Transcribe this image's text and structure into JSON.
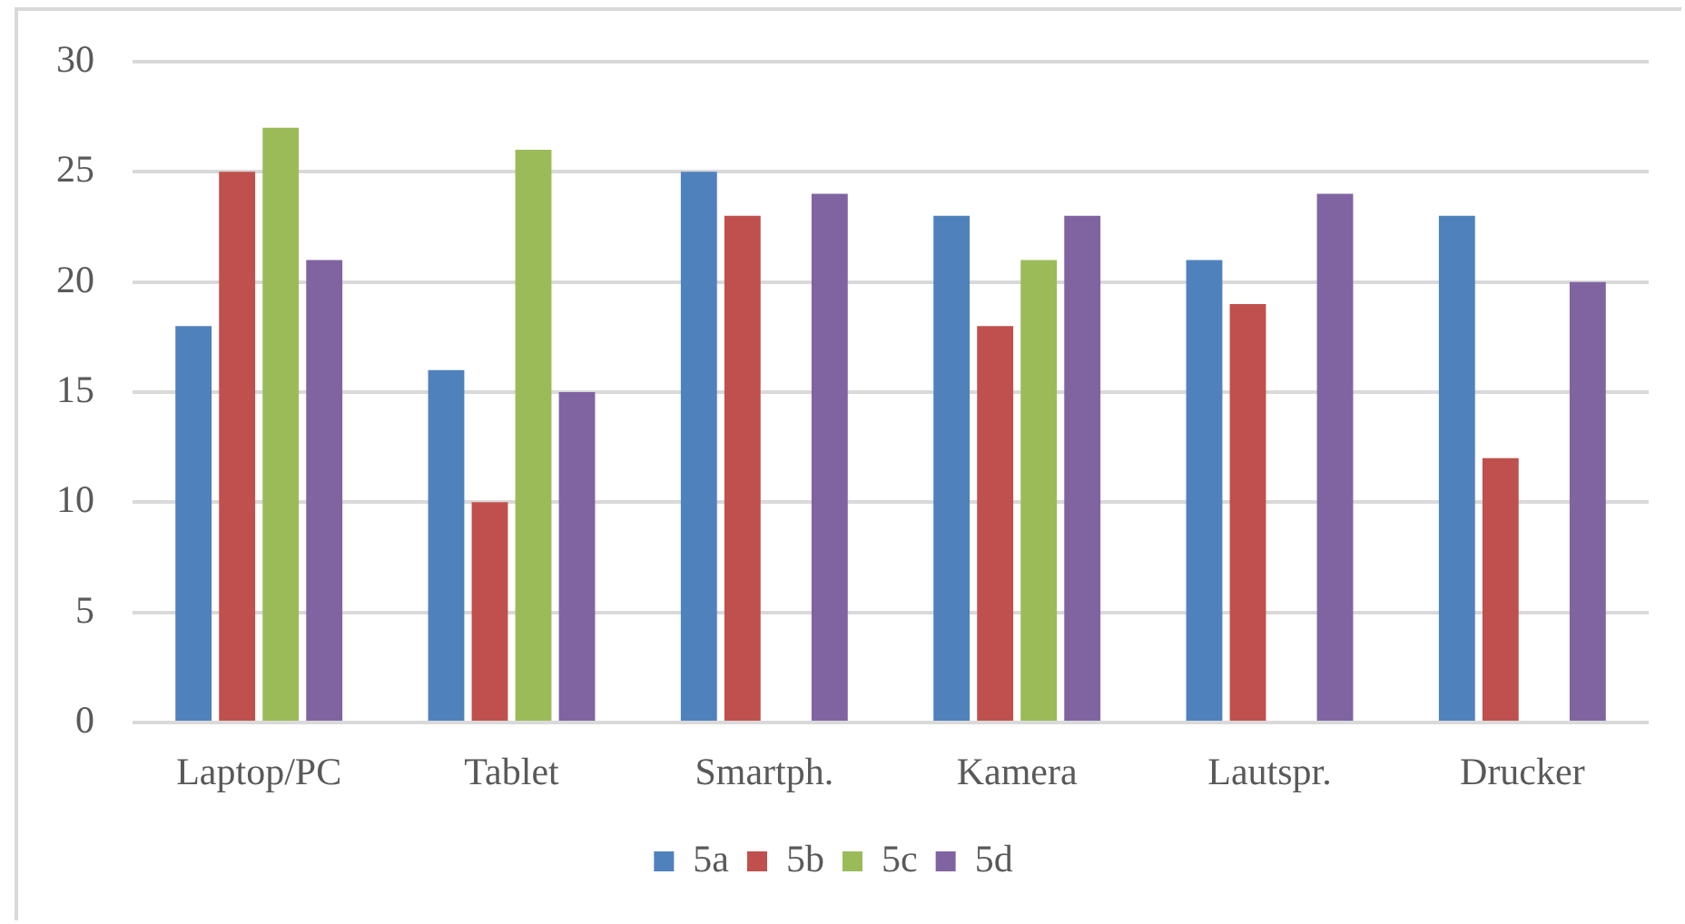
{
  "chart_data": {
    "type": "bar",
    "categories": [
      "Laptop/PC",
      "Tablet",
      "Smartph.",
      "Kamera",
      "Lautspr.",
      "Drucker"
    ],
    "series": [
      {
        "name": "5a",
        "color": "#4f81bd",
        "values": [
          18,
          16,
          25,
          23,
          21,
          23
        ]
      },
      {
        "name": "5b",
        "color": "#c0504d",
        "values": [
          25,
          10,
          23,
          18,
          19,
          12
        ]
      },
      {
        "name": "5c",
        "color": "#9bbb59",
        "values": [
          27,
          26,
          null,
          21,
          null,
          null
        ]
      },
      {
        "name": "5d",
        "color": "#8064a2",
        "values": [
          21,
          15,
          24,
          23,
          24,
          20
        ]
      }
    ],
    "ylim": [
      0,
      30
    ],
    "yticks": [
      0,
      5,
      10,
      15,
      20,
      25,
      30
    ],
    "grid": "y",
    "legend": "bottom"
  }
}
